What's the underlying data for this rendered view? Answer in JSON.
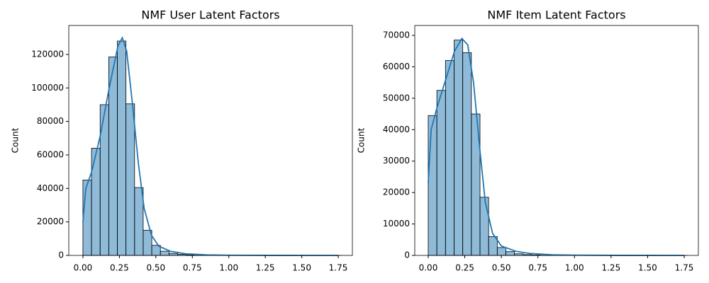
{
  "chart_data": [
    {
      "type": "histogram",
      "title": "NMF User Latent Factors",
      "ylabel": "Count",
      "bins": [
        0,
        0.059,
        0.118,
        0.177,
        0.236,
        0.295,
        0.354,
        0.413,
        0.472,
        0.531,
        0.59,
        0.649,
        0.708,
        0.767,
        0.826,
        0.885,
        0.944,
        1.003,
        1.062,
        1.121,
        1.18,
        1.239,
        1.298,
        1.357,
        1.416,
        1.475,
        1.534,
        1.593,
        1.652,
        1.711,
        1.77
      ],
      "counts": [
        45000,
        64000,
        90000,
        118500,
        128000,
        90500,
        40500,
        15000,
        6000,
        2500,
        1200,
        600,
        300,
        150,
        80,
        40,
        20,
        10,
        5,
        3,
        2,
        1,
        1,
        0,
        0,
        0,
        0,
        0,
        0,
        1
      ],
      "color": "#1f77b4",
      "kde": {
        "x": [
          0,
          0.02,
          0.06,
          0.12,
          0.18,
          0.24,
          0.27,
          0.3,
          0.34,
          0.38,
          0.42,
          0.47,
          0.52,
          0.6,
          0.7,
          0.85,
          1.0,
          1.3,
          1.75
        ],
        "y": [
          20000,
          40000,
          50000,
          72000,
          100000,
          125000,
          130000,
          122000,
          90000,
          55000,
          28000,
          12000,
          5500,
          2500,
          1000,
          300,
          100,
          20,
          0
        ]
      },
      "xlim": [
        -0.097,
        1.847
      ],
      "ylim": [
        0,
        137300
      ],
      "xticks": [
        {
          "value": 0,
          "label": "0.00"
        },
        {
          "value": 0.25,
          "label": "0.25"
        },
        {
          "value": 0.5,
          "label": "0.50"
        },
        {
          "value": 0.75,
          "label": "0.75"
        },
        {
          "value": 1,
          "label": "1.00"
        },
        {
          "value": 1.25,
          "label": "1.25"
        },
        {
          "value": 1.5,
          "label": "1.50"
        },
        {
          "value": 1.75,
          "label": "1.75"
        }
      ],
      "yticks": [
        0,
        20000,
        40000,
        60000,
        80000,
        100000,
        120000
      ]
    },
    {
      "type": "histogram",
      "title": "NMF Item Latent Factors",
      "ylabel": "Count",
      "bins": [
        0,
        0.059,
        0.118,
        0.177,
        0.236,
        0.295,
        0.354,
        0.413,
        0.472,
        0.531,
        0.59,
        0.649,
        0.708,
        0.767,
        0.826,
        0.885,
        0.944,
        1.003,
        1.062,
        1.121,
        1.18,
        1.239,
        1.298,
        1.357,
        1.416,
        1.475,
        1.534,
        1.593,
        1.652,
        1.711,
        1.77
      ],
      "counts": [
        44500,
        52500,
        62000,
        68500,
        64500,
        45000,
        18500,
        6000,
        2500,
        1200,
        500,
        250,
        120,
        60,
        30,
        15,
        8,
        4,
        2,
        1,
        1,
        0,
        0,
        0,
        0,
        0,
        0,
        0,
        0,
        1
      ],
      "color": "#1f77b4",
      "kde": {
        "x": [
          0,
          0.02,
          0.06,
          0.12,
          0.18,
          0.23,
          0.27,
          0.31,
          0.35,
          0.39,
          0.44,
          0.5,
          0.6,
          0.7,
          0.85,
          1.0,
          1.3,
          1.75
        ],
        "y": [
          23000,
          40000,
          47000,
          56000,
          65000,
          69000,
          67000,
          55000,
          35000,
          17000,
          7000,
          3000,
          1300,
          600,
          200,
          80,
          15,
          0
        ]
      },
      "xlim": [
        -0.092,
        1.847
      ],
      "ylim": [
        0,
        73150
      ],
      "xticks": [
        {
          "value": 0,
          "label": "0.00"
        },
        {
          "value": 0.25,
          "label": "0.25"
        },
        {
          "value": 0.5,
          "label": "0.50"
        },
        {
          "value": 0.75,
          "label": "0.75"
        },
        {
          "value": 1,
          "label": "1.00"
        },
        {
          "value": 1.25,
          "label": "1.25"
        },
        {
          "value": 1.5,
          "label": "1.50"
        },
        {
          "value": 1.75,
          "label": "1.75"
        }
      ],
      "yticks": [
        0,
        10000,
        20000,
        30000,
        40000,
        50000,
        60000,
        70000
      ]
    }
  ]
}
